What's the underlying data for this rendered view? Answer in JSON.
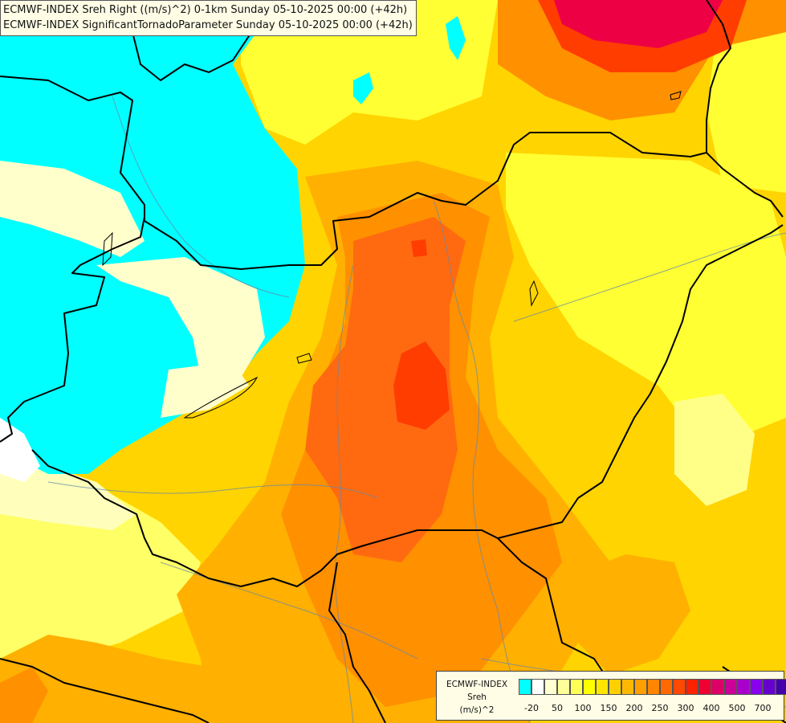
{
  "titles": {
    "line1": "ECMWF-INDEX Sreh Right ((m/s)^2) 0-1km Sunday 05-10-2025 00:00 (+42h)",
    "line2": "ECMWF-INDEX SignificantTornadoParameter Sunday 05-10-2025 00:00 (+42h)"
  },
  "legend": {
    "line1": "ECMWF-INDEX",
    "line2": "Sreh",
    "line3": "(m/s)^2",
    "swatch_colors": [
      "#00ffff",
      "#ffffff",
      "#ffffd0",
      "#ffff99",
      "#ffff55",
      "#ffff00",
      "#ffe600",
      "#ffd000",
      "#ffb800",
      "#ff9f00",
      "#ff8600",
      "#ff6a00",
      "#ff4800",
      "#ff2200",
      "#ee0033",
      "#dd0066",
      "#cc0099",
      "#aa00cc",
      "#8800ee",
      "#6600cc",
      "#4400aa",
      "#220088",
      "#000066"
    ],
    "ticks": [
      "-20",
      "50",
      "100",
      "150",
      "200",
      "250",
      "300",
      "400",
      "500",
      "700"
    ]
  },
  "colors": {
    "cyan": "#00ffff",
    "white": "#ffffff",
    "pale_yellow": "#ffffcc",
    "light_yellow": "#ffff88",
    "yellow": "#ffff00",
    "gold": "#ffd400",
    "orange_light": "#ffb000",
    "orange": "#ff9000",
    "orange_dark": "#ff6a10",
    "red_orange": "#ff3d00",
    "crimson": "#ee0044"
  }
}
